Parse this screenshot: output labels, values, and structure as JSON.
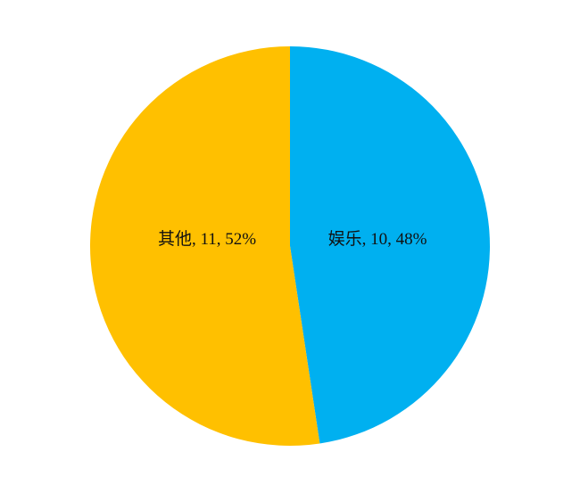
{
  "chart_data": {
    "type": "pie",
    "start": "top",
    "direction": "clockwise",
    "slices": [
      {
        "label": "娱乐",
        "value": 10,
        "percent": "48%",
        "color": "#00B0F0",
        "data_label": "娱乐, 10, 48%"
      },
      {
        "label": "其他",
        "value": 11,
        "percent": "52%",
        "color": "#FFC000",
        "data_label": "其他, 11, 52%"
      }
    ]
  }
}
